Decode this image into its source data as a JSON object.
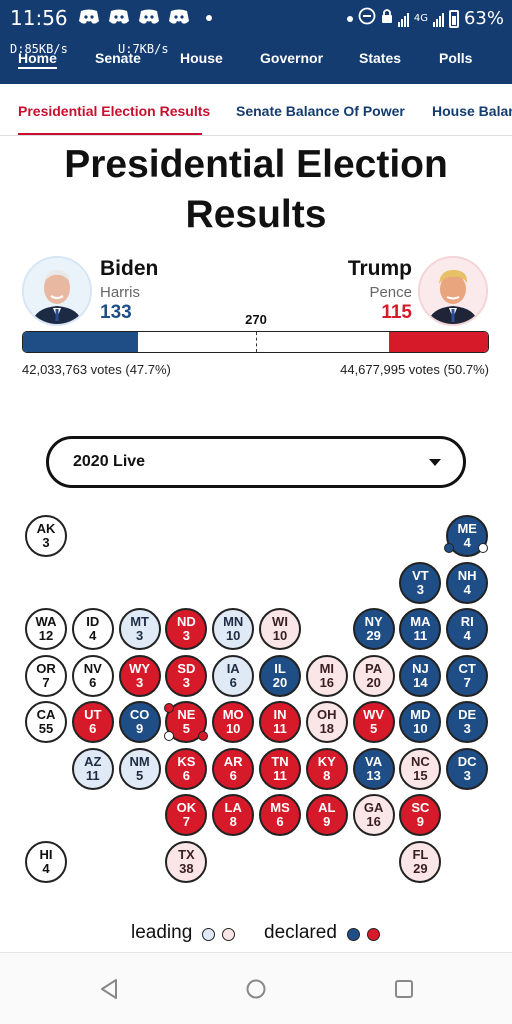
{
  "status_bar": {
    "time": "11:56",
    "battery": "63%",
    "signal_4g": "4G"
  },
  "net_speed": {
    "down": "D:85KB/s",
    "up": "U:7KB/s"
  },
  "nav": [
    "Home",
    "Senate",
    "House",
    "Governor",
    "States",
    "Polls"
  ],
  "tabs": [
    "Presidential Election Results",
    "Senate Balance Of Power",
    "House Balan"
  ],
  "headline": {
    "line1": "Presidential Election",
    "line2": "Results"
  },
  "candidates": {
    "dem": {
      "name": "Biden",
      "running_mate": "Harris",
      "electoral_votes": "133",
      "votes": "42,033,763 votes (47.7%)",
      "color": "#1f4e86"
    },
    "rep": {
      "name": "Trump",
      "running_mate": "Pence",
      "electoral_votes": "115",
      "votes": "44,677,995 votes (50.7%)",
      "color": "#d71a29"
    },
    "threshold": "270",
    "total_ev": 538
  },
  "dropdown": {
    "selected": "2020 Live"
  },
  "states": [
    {
      "abbr": "AK",
      "ev": "3",
      "status": "L"
    },
    {
      "abbr": "ME",
      "ev": "4",
      "status": "D"
    },
    {
      "abbr": "VT",
      "ev": "3",
      "status": "D"
    },
    {
      "abbr": "NH",
      "ev": "4",
      "status": "D"
    },
    {
      "abbr": "WA",
      "ev": "12",
      "status": "L"
    },
    {
      "abbr": "ID",
      "ev": "4",
      "status": "L"
    },
    {
      "abbr": "MT",
      "ev": "3",
      "status": "LD"
    },
    {
      "abbr": "ND",
      "ev": "3",
      "status": "R"
    },
    {
      "abbr": "MN",
      "ev": "10",
      "status": "LD"
    },
    {
      "abbr": "WI",
      "ev": "10",
      "status": "LR"
    },
    {
      "abbr": "NY",
      "ev": "29",
      "status": "D"
    },
    {
      "abbr": "MA",
      "ev": "11",
      "status": "D"
    },
    {
      "abbr": "RI",
      "ev": "4",
      "status": "D"
    },
    {
      "abbr": "OR",
      "ev": "7",
      "status": "L"
    },
    {
      "abbr": "NV",
      "ev": "6",
      "status": "L"
    },
    {
      "abbr": "WY",
      "ev": "3",
      "status": "R"
    },
    {
      "abbr": "SD",
      "ev": "3",
      "status": "R"
    },
    {
      "abbr": "IA",
      "ev": "6",
      "status": "LD"
    },
    {
      "abbr": "IL",
      "ev": "20",
      "status": "D"
    },
    {
      "abbr": "MI",
      "ev": "16",
      "status": "LR"
    },
    {
      "abbr": "PA",
      "ev": "20",
      "status": "LR"
    },
    {
      "abbr": "NJ",
      "ev": "14",
      "status": "D"
    },
    {
      "abbr": "CT",
      "ev": "7",
      "status": "D"
    },
    {
      "abbr": "CA",
      "ev": "55",
      "status": "L"
    },
    {
      "abbr": "UT",
      "ev": "6",
      "status": "R"
    },
    {
      "abbr": "CO",
      "ev": "9",
      "status": "D"
    },
    {
      "abbr": "NE",
      "ev": "5",
      "status": "R"
    },
    {
      "abbr": "MO",
      "ev": "10",
      "status": "R"
    },
    {
      "abbr": "IN",
      "ev": "11",
      "status": "R"
    },
    {
      "abbr": "OH",
      "ev": "18",
      "status": "LR"
    },
    {
      "abbr": "WV",
      "ev": "5",
      "status": "R"
    },
    {
      "abbr": "MD",
      "ev": "10",
      "status": "D"
    },
    {
      "abbr": "DE",
      "ev": "3",
      "status": "D"
    },
    {
      "abbr": "AZ",
      "ev": "11",
      "status": "LD"
    },
    {
      "abbr": "NM",
      "ev": "5",
      "status": "LD"
    },
    {
      "abbr": "KS",
      "ev": "6",
      "status": "R"
    },
    {
      "abbr": "AR",
      "ev": "6",
      "status": "R"
    },
    {
      "abbr": "TN",
      "ev": "11",
      "status": "R"
    },
    {
      "abbr": "KY",
      "ev": "8",
      "status": "R"
    },
    {
      "abbr": "VA",
      "ev": "13",
      "status": "D"
    },
    {
      "abbr": "NC",
      "ev": "15",
      "status": "LR"
    },
    {
      "abbr": "DC",
      "ev": "3",
      "status": "D"
    },
    {
      "abbr": "OK",
      "ev": "7",
      "status": "R"
    },
    {
      "abbr": "LA",
      "ev": "8",
      "status": "R"
    },
    {
      "abbr": "MS",
      "ev": "6",
      "status": "R"
    },
    {
      "abbr": "AL",
      "ev": "9",
      "status": "R"
    },
    {
      "abbr": "GA",
      "ev": "16",
      "status": "LR"
    },
    {
      "abbr": "SC",
      "ev": "9",
      "status": "R"
    },
    {
      "abbr": "HI",
      "ev": "4",
      "status": "L"
    },
    {
      "abbr": "TX",
      "ev": "38",
      "status": "LR"
    },
    {
      "abbr": "FL",
      "ev": "29",
      "status": "LR"
    }
  ],
  "legend": {
    "leading": "leading",
    "declared": "declared"
  },
  "colors": {
    "dem_declared": "#1f4e86",
    "rep_declared": "#d71a29",
    "dem_leading": "#dfeaf6",
    "rep_leading": "#fbe6e7",
    "header_bg": "#143c70"
  }
}
